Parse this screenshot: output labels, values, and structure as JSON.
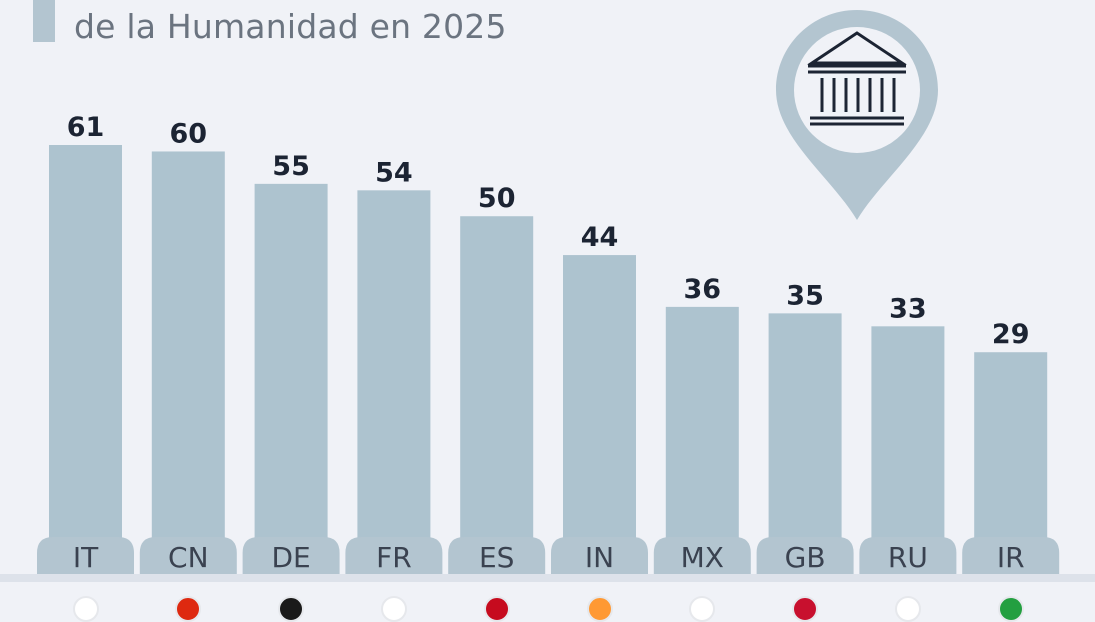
{
  "header": {
    "subtitle": "de la Humanidad en 2025"
  },
  "colors": {
    "background": "#f0f2f7",
    "bar": "#adc3cf",
    "tab": "#b3c5d0",
    "value_text": "#1c2433"
  },
  "icon": {
    "name": "museum-location-pin-icon"
  },
  "flags": [
    {
      "code": "IT",
      "color": "#ffffff"
    },
    {
      "code": "CN",
      "color": "#de2910"
    },
    {
      "code": "DE",
      "color": "#1a1a1a"
    },
    {
      "code": "FR",
      "color": "#ffffff"
    },
    {
      "code": "ES",
      "color": "#c60b1e"
    },
    {
      "code": "IN",
      "color": "#ff9933"
    },
    {
      "code": "MX",
      "color": "#ffffff"
    },
    {
      "code": "GB",
      "color": "#c8102e"
    },
    {
      "code": "RU",
      "color": "#ffffff"
    },
    {
      "code": "IR",
      "color": "#239f40"
    }
  ],
  "chart_data": {
    "type": "bar",
    "categories": [
      "IT",
      "CN",
      "DE",
      "FR",
      "ES",
      "IN",
      "MX",
      "GB",
      "RU",
      "IR"
    ],
    "values": [
      61,
      60,
      55,
      54,
      50,
      44,
      36,
      35,
      33,
      29
    ],
    "ylim": [
      0,
      61
    ],
    "grid": false
  }
}
